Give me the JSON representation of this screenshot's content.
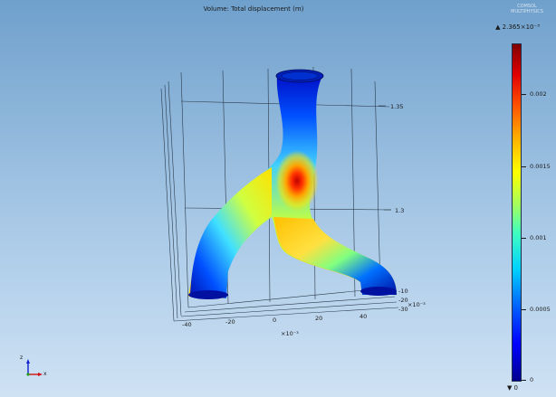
{
  "title": "Volume: Total displacement (m)",
  "watermark": "COMSOL MULTIPHYSICS",
  "colorbar": {
    "max_label": "▲ 2.365×10⁻³",
    "min_label": "▼ 0",
    "ticks": [
      "0.002",
      "0.0015",
      "0.001",
      "0.0005",
      "0"
    ]
  },
  "axes": {
    "z_ticks": [
      "1.35",
      "1.3"
    ],
    "x_ticks": [
      "-40",
      "-20",
      "0",
      "20",
      "40"
    ],
    "x_exponent": "×10⁻³",
    "y_ticks": [
      "-10",
      "-20",
      "-30"
    ],
    "y_exponent": "×10⁻³"
  },
  "triad": {
    "z": "z",
    "x": "x"
  }
}
